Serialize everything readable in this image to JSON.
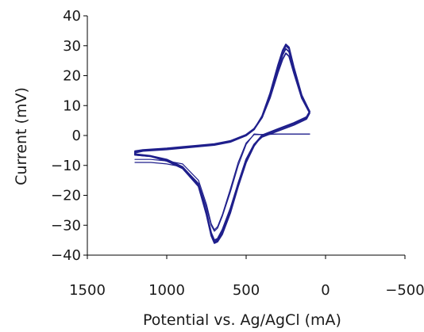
{
  "chart_data": {
    "type": "line",
    "title": "",
    "xlabel": "Potential vs. Ag/AgCl (mA)",
    "ylabel": "Current (mV)",
    "xlim": [
      1500,
      -500
    ],
    "ylim": [
      -40,
      40
    ],
    "x_reversed": true,
    "x_ticks": [
      1500,
      1000,
      500,
      0,
      -500
    ],
    "x_tick_labels": [
      "1500",
      "1000",
      "500",
      "0",
      "−500"
    ],
    "y_ticks": [
      40,
      30,
      20,
      10,
      0,
      -10,
      -20,
      -30,
      -40
    ],
    "y_tick_labels": [
      "40",
      "30",
      "20",
      "10",
      "0",
      "−10",
      "−20",
      "−30",
      "−40"
    ],
    "grid": false,
    "legend": "none",
    "line_color": "#1f1f8c",
    "series": [
      {
        "x": [
          100,
          120,
          200,
          300,
          400,
          450,
          500,
          550,
          600,
          650,
          680,
          700,
          720,
          750,
          800,
          900,
          1000,
          1100,
          1200,
          1200,
          1150,
          1000,
          900,
          800,
          700,
          600,
          500,
          450,
          400,
          350,
          300,
          270,
          250,
          230,
          200,
          150,
          100
        ],
        "y": [
          8,
          6,
          4,
          2,
          0,
          -3,
          -8,
          -16,
          -25,
          -32,
          -35,
          -35.5,
          -33,
          -26,
          -17,
          -11,
          -8.5,
          -7,
          -6.5,
          -5.5,
          -5,
          -4.5,
          -4,
          -3.5,
          -3,
          -2,
          0,
          2,
          6,
          13,
          22,
          27,
          29,
          28,
          22,
          13,
          8
        ]
      },
      {
        "x": [
          100,
          120,
          200,
          300,
          400,
          450,
          500,
          550,
          600,
          650,
          680,
          700,
          720,
          750,
          800,
          900,
          1000,
          1100,
          1200,
          1200,
          1150,
          1000,
          900,
          800,
          700,
          600,
          500,
          450,
          400,
          350,
          300,
          270,
          250,
          230,
          200,
          150,
          100
        ],
        "y": [
          8,
          6,
          4,
          2,
          0,
          -3.5,
          -9,
          -17,
          -26,
          -33,
          -35.5,
          -36,
          -33.5,
          -26.5,
          -17,
          -11,
          -8.5,
          -7,
          -6.5,
          -5.8,
          -5.2,
          -4.7,
          -4.2,
          -3.7,
          -3.2,
          -2.2,
          0,
          2,
          6.5,
          14,
          23.5,
          28.5,
          30.5,
          29.5,
          23,
          13.5,
          8
        ]
      },
      {
        "x": [
          100,
          120,
          200,
          300,
          400,
          450,
          500,
          550,
          600,
          650,
          680,
          700,
          720,
          750,
          800,
          900,
          1000,
          1100,
          1200,
          1200,
          1150,
          1000,
          900,
          800,
          700,
          600,
          500,
          450,
          400,
          350,
          300,
          270,
          250,
          230,
          200,
          150,
          100
        ],
        "y": [
          7.5,
          5.5,
          3.5,
          1.5,
          -0.5,
          -3,
          -8,
          -16,
          -24.5,
          -31.5,
          -34.5,
          -35,
          -32.5,
          -25.5,
          -16.5,
          -10.5,
          -8,
          -6.8,
          -6.2,
          -5.2,
          -4.8,
          -4.3,
          -3.8,
          -3.3,
          -2.8,
          -1.8,
          0.3,
          2.3,
          6,
          12.5,
          21,
          25.5,
          27.5,
          26.5,
          21,
          12.5,
          7.5
        ]
      },
      {
        "x": [
          100,
          120,
          200,
          300,
          400,
          450,
          500,
          550,
          600,
          650,
          680,
          700,
          720,
          750,
          800,
          900,
          1000,
          1100,
          1200,
          1200,
          1150,
          1000,
          900,
          800,
          700,
          600,
          500,
          450,
          400,
          350,
          300,
          270,
          250,
          230,
          200,
          150,
          100
        ],
        "y": [
          8,
          6.2,
          4.2,
          2.2,
          0.1,
          -3.2,
          -8.5,
          -16.5,
          -25.5,
          -32.5,
          -35.2,
          -35.8,
          -33.2,
          -26.2,
          -16.8,
          -10.8,
          -8.2,
          -6.9,
          -6.4,
          -5.6,
          -5,
          -4.5,
          -4,
          -3.5,
          -3,
          -2,
          0.1,
          2.1,
          6.3,
          13.5,
          23,
          28,
          30,
          29,
          22.5,
          13.2,
          8
        ]
      },
      {
        "x": [
          100,
          200,
          300,
          400,
          450,
          500,
          550,
          600,
          650,
          680,
          700,
          720,
          750,
          800,
          900,
          1000,
          1100,
          1200
        ],
        "y": [
          0.5,
          0.5,
          0.5,
          0.3,
          0.5,
          -3,
          -10,
          -19,
          -27,
          -31,
          -32,
          -30,
          -24,
          -16,
          -10.5,
          -9.5,
          -9,
          -9
        ]
      },
      {
        "x": [
          100,
          200,
          300,
          400,
          450,
          500,
          550,
          600,
          650,
          680,
          700,
          720,
          750,
          800,
          900,
          1000,
          1100,
          1200
        ],
        "y": [
          0.5,
          0.5,
          0.5,
          0.3,
          0.3,
          -2.5,
          -9,
          -18,
          -26.5,
          -30.5,
          -31.5,
          -29.5,
          -23,
          -15,
          -9.5,
          -8.5,
          -8,
          -8
        ]
      }
    ]
  }
}
